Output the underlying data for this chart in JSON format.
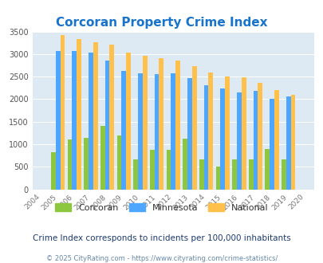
{
  "title": "Corcoran Property Crime Index",
  "title_color": "#1874CD",
  "years": [
    2004,
    2005,
    2006,
    2007,
    2008,
    2009,
    2010,
    2011,
    2012,
    2013,
    2014,
    2015,
    2016,
    2017,
    2018,
    2019,
    2020
  ],
  "corcoran": [
    0,
    820,
    1100,
    1150,
    1400,
    1190,
    660,
    870,
    870,
    1130,
    660,
    510,
    660,
    660,
    890,
    660,
    0
  ],
  "minnesota": [
    0,
    3070,
    3070,
    3040,
    2850,
    2630,
    2580,
    2560,
    2580,
    2460,
    2310,
    2230,
    2150,
    2190,
    2010,
    2060,
    0
  ],
  "national": [
    0,
    3430,
    3340,
    3270,
    3210,
    3040,
    2960,
    2910,
    2860,
    2730,
    2600,
    2500,
    2480,
    2360,
    2200,
    2100,
    0
  ],
  "bar_color_corcoran": "#8DC63F",
  "bar_color_minnesota": "#4DA6FF",
  "bar_color_national": "#FFC04C",
  "plot_bg_color": "#DDE9F3",
  "ylim": [
    0,
    3500
  ],
  "yticks": [
    0,
    500,
    1000,
    1500,
    2000,
    2500,
    3000,
    3500
  ],
  "subtitle": "Crime Index corresponds to incidents per 100,000 inhabitants",
  "footer": "© 2025 CityRating.com - https://www.cityrating.com/crime-statistics/",
  "subtitle_color": "#1C3A6E",
  "footer_color": "#6688AA"
}
